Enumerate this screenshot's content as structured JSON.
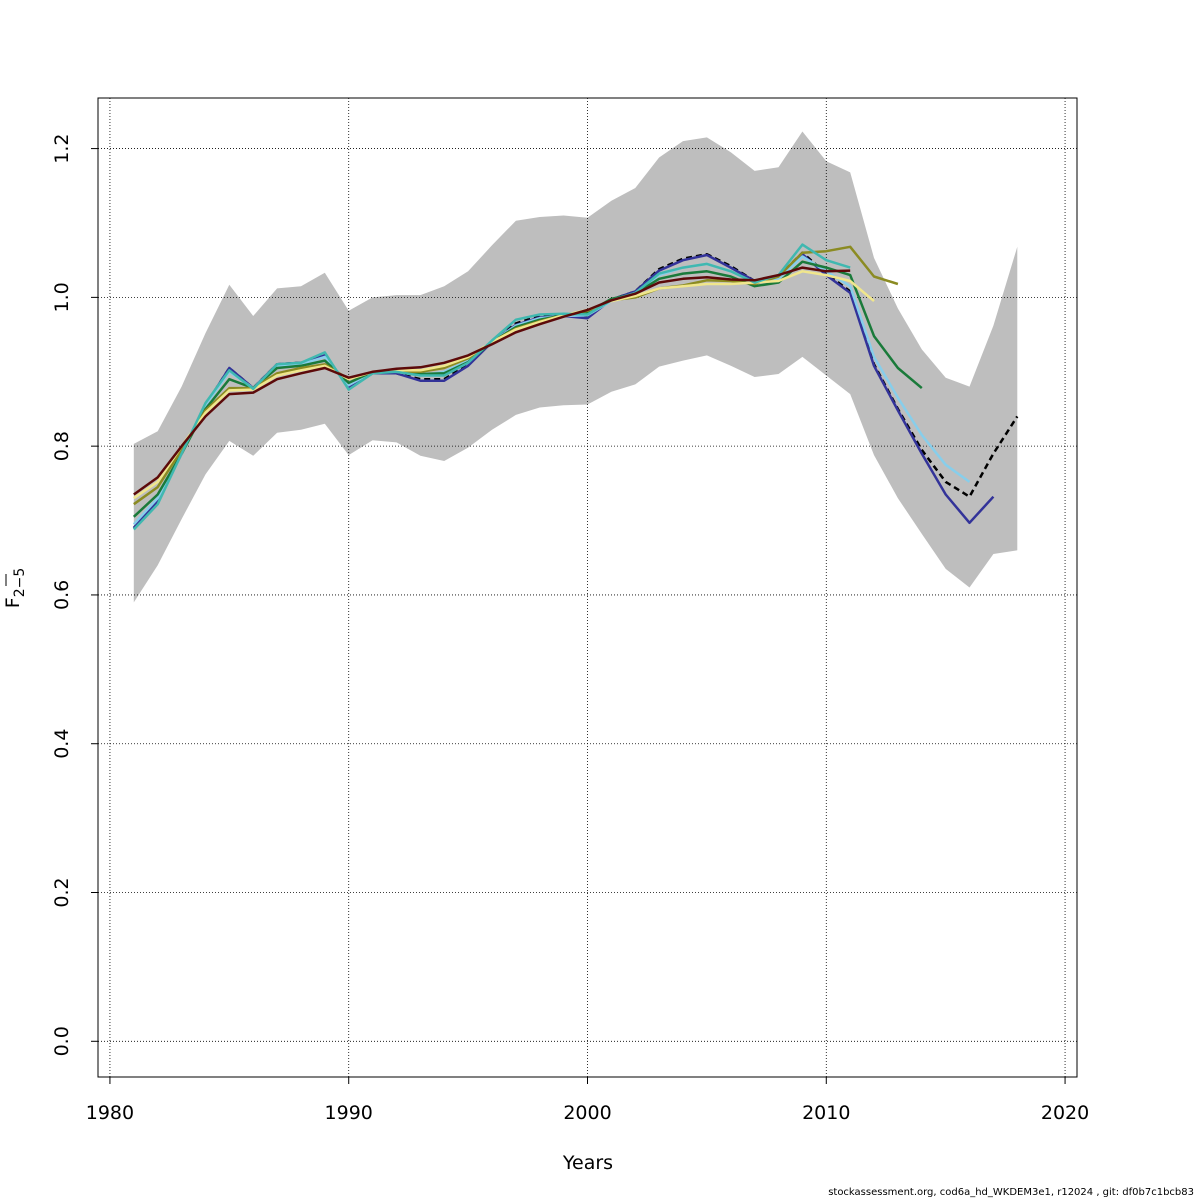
{
  "chart_data": {
    "type": "line",
    "xlabel": "Years",
    "ylabel_main": "F",
    "ylabel_sub": "2−5",
    "xlim": [
      1979.5,
      2020.5
    ],
    "ylim": [
      -0.048,
      1.268
    ],
    "x_ticks": [
      1980,
      1990,
      2000,
      2010,
      2020
    ],
    "y_ticks": [
      0.0,
      0.2,
      0.4,
      0.6,
      0.8,
      1.0,
      1.2
    ],
    "x_tick_labels": [
      "1980",
      "1990",
      "2000",
      "2010",
      "2020"
    ],
    "y_tick_labels": [
      "0.0",
      "0.2",
      "0.4",
      "0.6",
      "0.8",
      "1.0",
      "1.2"
    ],
    "grid": true,
    "band": {
      "color": "#bebebe",
      "x": [
        1981,
        1982,
        1983,
        1984,
        1985,
        1986,
        1987,
        1988,
        1989,
        1990,
        1991,
        1992,
        1993,
        1994,
        1995,
        1996,
        1997,
        1998,
        1999,
        2000,
        2001,
        2002,
        2003,
        2004,
        2005,
        2006,
        2007,
        2008,
        2009,
        2010,
        2011,
        2012,
        2013,
        2014,
        2015,
        2016,
        2017,
        2018
      ],
      "upper": [
        0.803,
        0.82,
        0.88,
        0.952,
        1.017,
        0.975,
        1.012,
        1.015,
        1.033,
        0.982,
        1.0,
        1.003,
        1.003,
        1.015,
        1.035,
        1.07,
        1.103,
        1.108,
        1.11,
        1.107,
        1.13,
        1.147,
        1.188,
        1.21,
        1.215,
        1.195,
        1.17,
        1.175,
        1.223,
        1.183,
        1.168,
        1.053,
        0.985,
        0.93,
        0.892,
        0.88,
        0.962,
        1.068
      ],
      "lower": [
        0.59,
        0.64,
        0.702,
        0.762,
        0.807,
        0.787,
        0.818,
        0.822,
        0.83,
        0.788,
        0.808,
        0.805,
        0.787,
        0.78,
        0.798,
        0.822,
        0.842,
        0.852,
        0.855,
        0.856,
        0.873,
        0.883,
        0.907,
        0.915,
        0.922,
        0.908,
        0.893,
        0.897,
        0.92,
        0.895,
        0.87,
        0.788,
        0.73,
        0.682,
        0.635,
        0.61,
        0.655,
        0.66
      ]
    },
    "series": [
      {
        "color": "#000000",
        "dashed": true,
        "x": [
          1981,
          1982,
          1983,
          1984,
          1985,
          1986,
          1987,
          1988,
          1989,
          1990,
          1991,
          1992,
          1993,
          1994,
          1995,
          1996,
          1997,
          1998,
          1999,
          2000,
          2001,
          2002,
          2003,
          2004,
          2005,
          2006,
          2007,
          2008,
          2009,
          2010,
          2011,
          2012,
          2013,
          2014,
          2015,
          2016,
          2017,
          2018
        ],
        "values": [
          0.69,
          0.727,
          0.79,
          0.855,
          0.905,
          0.878,
          0.91,
          0.912,
          0.922,
          0.88,
          0.898,
          0.898,
          0.89,
          0.89,
          0.91,
          0.94,
          0.965,
          0.975,
          0.975,
          0.975,
          0.997,
          1.008,
          1.038,
          1.052,
          1.058,
          1.042,
          1.022,
          1.028,
          1.06,
          1.032,
          1.008,
          0.91,
          0.85,
          0.795,
          0.752,
          0.732,
          0.79,
          0.84
        ]
      },
      {
        "color": "#333399",
        "dashed": false,
        "x": [
          1981,
          1982,
          1983,
          1984,
          1985,
          1986,
          1987,
          1988,
          1989,
          1990,
          1991,
          1992,
          1993,
          1994,
          1995,
          1996,
          1997,
          1998,
          1999,
          2000,
          2001,
          2002,
          2003,
          2004,
          2005,
          2006,
          2007,
          2008,
          2009,
          2010,
          2011,
          2012,
          2013,
          2014,
          2015,
          2016,
          2017
        ],
        "values": [
          0.69,
          0.727,
          0.79,
          0.855,
          0.905,
          0.878,
          0.91,
          0.912,
          0.922,
          0.88,
          0.898,
          0.898,
          0.888,
          0.888,
          0.908,
          0.94,
          0.963,
          0.973,
          0.975,
          0.972,
          0.997,
          1.008,
          1.036,
          1.05,
          1.057,
          1.04,
          1.022,
          1.028,
          1.058,
          1.03,
          1.006,
          0.908,
          0.848,
          0.79,
          0.735,
          0.697,
          0.732
        ]
      },
      {
        "color": "#87ceeb",
        "dashed": false,
        "x": [
          1981,
          1982,
          1983,
          1984,
          1985,
          1986,
          1987,
          1988,
          1989,
          1990,
          1991,
          1992,
          1993,
          1994,
          1995,
          1996,
          1997,
          1998,
          1999,
          2000,
          2001,
          2002,
          2003,
          2004,
          2005,
          2006,
          2007,
          2008,
          2009,
          2010,
          2011,
          2012,
          2013,
          2014,
          2015,
          2016
        ],
        "values": [
          0.695,
          0.73,
          0.792,
          0.855,
          0.9,
          0.878,
          0.908,
          0.91,
          0.92,
          0.882,
          0.9,
          0.9,
          0.895,
          0.9,
          0.915,
          0.94,
          0.962,
          0.972,
          0.975,
          0.976,
          0.995,
          1.006,
          1.03,
          1.04,
          1.045,
          1.035,
          1.02,
          1.025,
          1.055,
          1.035,
          1.015,
          0.92,
          0.865,
          0.815,
          0.775,
          0.752
        ]
      },
      {
        "color": "#1a7a3a",
        "dashed": false,
        "x": [
          1981,
          1982,
          1983,
          1984,
          1985,
          1986,
          1987,
          1988,
          1989,
          1990,
          1991,
          1992,
          1993,
          1994,
          1995,
          1996,
          1997,
          1998,
          1999,
          2000,
          2001,
          2002,
          2003,
          2004,
          2005,
          2006,
          2007,
          2008,
          2009,
          2010,
          2011,
          2012,
          2013,
          2014
        ],
        "values": [
          0.705,
          0.735,
          0.79,
          0.85,
          0.89,
          0.878,
          0.905,
          0.908,
          0.915,
          0.885,
          0.9,
          0.9,
          0.897,
          0.898,
          0.913,
          0.94,
          0.96,
          0.97,
          0.976,
          0.98,
          0.998,
          1.005,
          1.025,
          1.032,
          1.035,
          1.028,
          1.015,
          1.02,
          1.048,
          1.04,
          1.03,
          0.948,
          0.905,
          0.878
        ]
      },
      {
        "color": "#8b8b22",
        "dashed": false,
        "x": [
          1981,
          1982,
          1983,
          1984,
          1985,
          1986,
          1987,
          1988,
          1989,
          1990,
          1991,
          1992,
          1993,
          1994,
          1995,
          1996,
          1997,
          1998,
          1999,
          2000,
          2001,
          2002,
          2003,
          2004,
          2005,
          2006,
          2007,
          2008,
          2009,
          2010,
          2011,
          2012,
          2013
        ],
        "values": [
          0.722,
          0.745,
          0.795,
          0.848,
          0.878,
          0.878,
          0.898,
          0.905,
          0.91,
          0.89,
          0.9,
          0.9,
          0.9,
          0.905,
          0.918,
          0.94,
          0.958,
          0.968,
          0.976,
          0.982,
          0.996,
          1.0,
          1.012,
          1.016,
          1.023,
          1.022,
          1.018,
          1.028,
          1.06,
          1.062,
          1.068,
          1.028,
          1.018
        ]
      },
      {
        "color": "#f0e68c",
        "dashed": false,
        "x": [
          1981,
          1982,
          1983,
          1984,
          1985,
          1986,
          1987,
          1988,
          1989,
          1990,
          1991,
          1992,
          1993,
          1994,
          1995,
          1996,
          1997,
          1998,
          1999,
          2000,
          2001,
          2002,
          2003,
          2004,
          2005,
          2006,
          2007,
          2008,
          2009,
          2010,
          2011,
          2012
        ],
        "values": [
          0.73,
          0.752,
          0.8,
          0.845,
          0.875,
          0.876,
          0.895,
          0.902,
          0.908,
          0.89,
          0.9,
          0.902,
          0.902,
          0.908,
          0.92,
          0.94,
          0.957,
          0.967,
          0.976,
          0.983,
          0.995,
          1.002,
          1.012,
          1.015,
          1.018,
          1.018,
          1.02,
          1.022,
          1.035,
          1.03,
          1.022,
          0.995
        ]
      },
      {
        "color": "#40b8b0",
        "dashed": false,
        "x": [
          1981,
          1982,
          1983,
          1984,
          1985,
          1986,
          1987,
          1988,
          1989,
          1990,
          1991,
          1992,
          1993,
          1994,
          1995,
          1996,
          1997,
          1998,
          1999,
          2000,
          2001,
          2002,
          2003,
          2004,
          2005,
          2006,
          2007,
          2008,
          2009,
          2010,
          2011
        ],
        "values": [
          0.688,
          0.722,
          0.79,
          0.858,
          0.902,
          0.877,
          0.91,
          0.912,
          0.926,
          0.876,
          0.898,
          0.9,
          0.895,
          0.895,
          0.912,
          0.942,
          0.97,
          0.977,
          0.978,
          0.977,
          0.996,
          1.006,
          1.032,
          1.04,
          1.045,
          1.035,
          1.02,
          1.03,
          1.071,
          1.05,
          1.04
        ]
      },
      {
        "color": "#5c0a0a",
        "dashed": false,
        "x": [
          1981,
          1982,
          1983,
          1984,
          1985,
          1986,
          1987,
          1988,
          1989,
          1990,
          1991,
          1992,
          1993,
          1994,
          1995,
          1996,
          1997,
          1998,
          1999,
          2000,
          2001,
          2002,
          2003,
          2004,
          2005,
          2006,
          2007,
          2008,
          2009,
          2010,
          2011
        ],
        "values": [
          0.735,
          0.758,
          0.8,
          0.84,
          0.87,
          0.872,
          0.89,
          0.898,
          0.905,
          0.892,
          0.9,
          0.904,
          0.906,
          0.912,
          0.922,
          0.937,
          0.953,
          0.964,
          0.974,
          0.983,
          0.996,
          1.005,
          1.02,
          1.025,
          1.027,
          1.024,
          1.023,
          1.03,
          1.04,
          1.035,
          1.036
        ]
      }
    ]
  },
  "footer": "stockassessment.org, cod6a_hd_WKDEM3e1, r12024 , git: df0b7c1bcb83"
}
